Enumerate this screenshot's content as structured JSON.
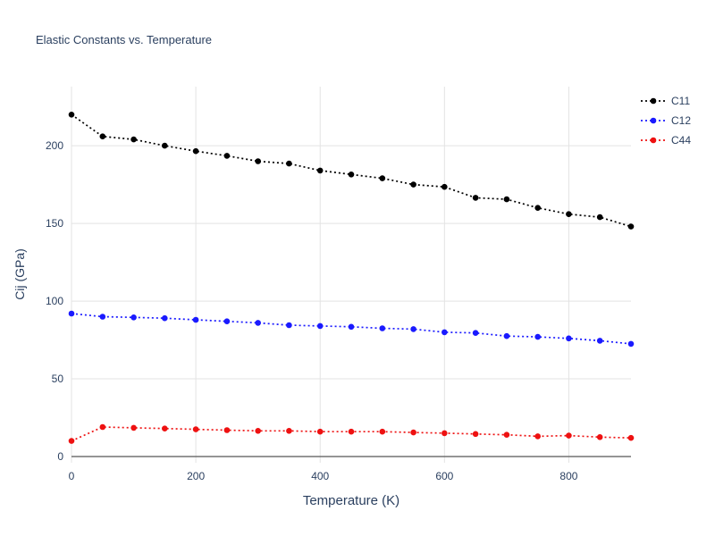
{
  "chart_data": {
    "type": "line",
    "title": "Elastic Constants vs. Temperature",
    "xlabel": "Temperature (K)",
    "ylabel": "Cij (GPa)",
    "x": [
      0,
      50,
      100,
      150,
      200,
      250,
      300,
      350,
      400,
      450,
      500,
      550,
      600,
      650,
      700,
      750,
      800,
      850,
      900
    ],
    "series": [
      {
        "name": "C11",
        "color": "#000000",
        "values": [
          220,
          206,
          204,
          200,
          196.5,
          193.5,
          190,
          188.5,
          184,
          181.5,
          179,
          175,
          173.5,
          166.5,
          165.5,
          160,
          156,
          154,
          148
        ]
      },
      {
        "name": "C12",
        "color": "#1a1aff",
        "values": [
          92,
          90,
          89.5,
          89,
          88,
          87,
          86,
          84.5,
          84,
          83.5,
          82.5,
          82,
          80,
          79.5,
          77.5,
          77,
          76,
          74.5,
          72.5
        ]
      },
      {
        "name": "C44",
        "color": "#ee1111",
        "values": [
          10,
          19,
          18.5,
          18,
          17.5,
          17,
          16.5,
          16.5,
          16,
          16,
          16,
          15.5,
          15,
          14.5,
          14,
          13,
          13.5,
          12.5,
          12
        ]
      }
    ],
    "xlim": [
      0,
      900
    ],
    "ylim": [
      -4,
      238
    ],
    "x_ticks": [
      0,
      200,
      400,
      600,
      800
    ],
    "y_ticks": [
      0,
      50,
      100,
      150,
      200
    ],
    "grid": true,
    "line_style": "dotted-with-markers",
    "legend_position": "right-outside",
    "colors": {
      "grid": "#e3e3e3",
      "zero_line": "#666666",
      "tick_label": "#2a3f5f",
      "title": "#2a3f5f",
      "background": "#ffffff"
    }
  }
}
